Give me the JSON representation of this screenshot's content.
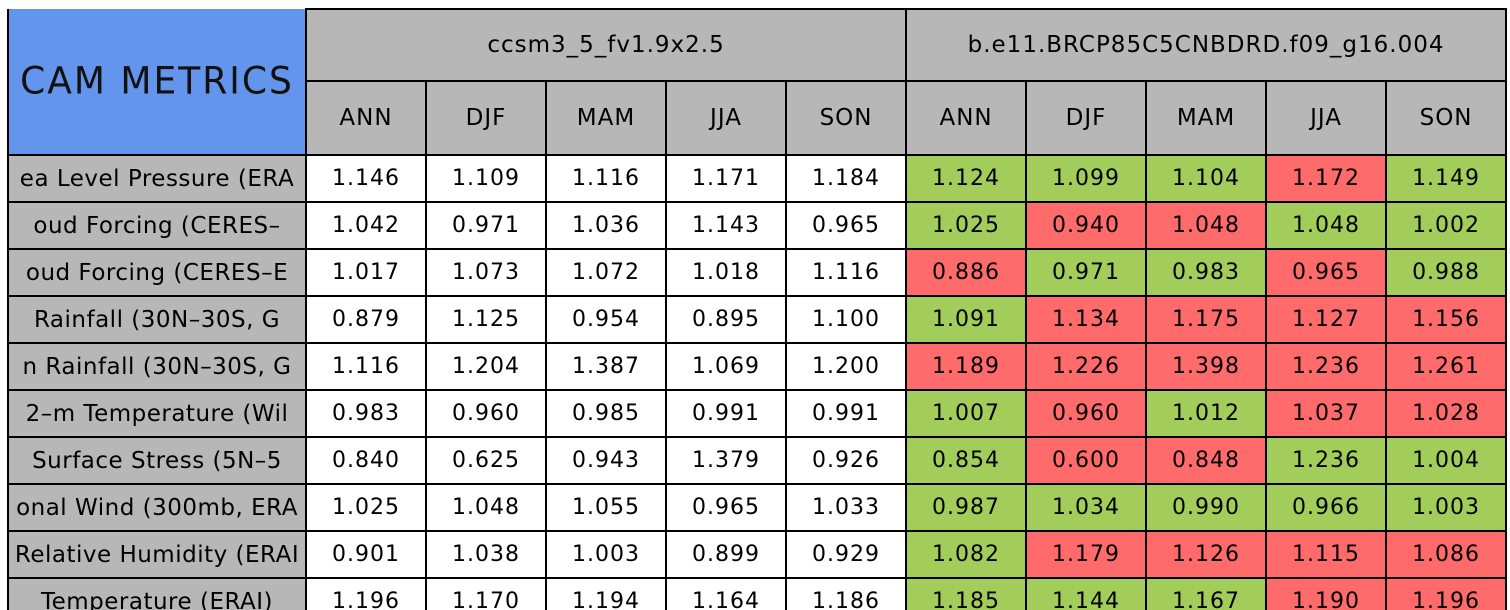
{
  "chart_data": {
    "type": "table",
    "title": "CAM METRICS",
    "legend_semantics": {
      "green_cells": "second model closer to 1.0 (better)",
      "red_cells": "second model farther from 1.0 (worse)"
    },
    "column_groups": [
      {
        "name": "ccsm3_5_fv1.9x2.5",
        "seasons": [
          "ANN",
          "DJF",
          "MAM",
          "JJA",
          "SON"
        ]
      },
      {
        "name": "b.e11.BRCP85C5CNBDRD.f09_g16.004",
        "seasons": [
          "ANN",
          "DJF",
          "MAM",
          "JJA",
          "SON"
        ]
      }
    ],
    "rows": [
      {
        "label": "ea Level Pressure (ERA",
        "model1": [
          "1.146",
          "1.109",
          "1.116",
          "1.171",
          "1.184"
        ],
        "model2": [
          "1.124",
          "1.099",
          "1.104",
          "1.172",
          "1.149"
        ],
        "model2_status": [
          "better",
          "better",
          "better",
          "worse",
          "better"
        ]
      },
      {
        "label": "oud Forcing (CERES–",
        "model1": [
          "1.042",
          "0.971",
          "1.036",
          "1.143",
          "0.965"
        ],
        "model2": [
          "1.025",
          "0.940",
          "1.048",
          "1.048",
          "1.002"
        ],
        "model2_status": [
          "better",
          "worse",
          "worse",
          "better",
          "better"
        ]
      },
      {
        "label": "oud Forcing (CERES–E",
        "model1": [
          "1.017",
          "1.073",
          "1.072",
          "1.018",
          "1.116"
        ],
        "model2": [
          "0.886",
          "0.971",
          "0.983",
          "0.965",
          "0.988"
        ],
        "model2_status": [
          "worse",
          "better",
          "better",
          "worse",
          "better"
        ]
      },
      {
        "label": "Rainfall (30N–30S, G",
        "model1": [
          "0.879",
          "1.125",
          "0.954",
          "0.895",
          "1.100"
        ],
        "model2": [
          "1.091",
          "1.134",
          "1.175",
          "1.127",
          "1.156"
        ],
        "model2_status": [
          "better",
          "worse",
          "worse",
          "worse",
          "worse"
        ]
      },
      {
        "label": "n Rainfall (30N–30S, G",
        "model1": [
          "1.116",
          "1.204",
          "1.387",
          "1.069",
          "1.200"
        ],
        "model2": [
          "1.189",
          "1.226",
          "1.398",
          "1.236",
          "1.261"
        ],
        "model2_status": [
          "worse",
          "worse",
          "worse",
          "worse",
          "worse"
        ]
      },
      {
        "label": "2–m Temperature (Wil",
        "model1": [
          "0.983",
          "0.960",
          "0.985",
          "0.991",
          "0.991"
        ],
        "model2": [
          "1.007",
          "0.960",
          "1.012",
          "1.037",
          "1.028"
        ],
        "model2_status": [
          "better",
          "worse",
          "better",
          "worse",
          "worse"
        ]
      },
      {
        "label": "Surface Stress (5N–5",
        "model1": [
          "0.840",
          "0.625",
          "0.943",
          "1.379",
          "0.926"
        ],
        "model2": [
          "0.854",
          "0.600",
          "0.848",
          "1.236",
          "1.004"
        ],
        "model2_status": [
          "better",
          "worse",
          "worse",
          "better",
          "better"
        ]
      },
      {
        "label": "onal Wind (300mb, ERA",
        "model1": [
          "1.025",
          "1.048",
          "1.055",
          "0.965",
          "1.033"
        ],
        "model2": [
          "0.987",
          "1.034",
          "0.990",
          "0.966",
          "1.003"
        ],
        "model2_status": [
          "better",
          "better",
          "better",
          "better",
          "better"
        ]
      },
      {
        "label": "Relative Humidity (ERAI",
        "model1": [
          "0.901",
          "1.038",
          "1.003",
          "0.899",
          "0.929"
        ],
        "model2": [
          "1.082",
          "1.179",
          "1.126",
          "1.115",
          "1.086"
        ],
        "model2_status": [
          "better",
          "worse",
          "worse",
          "worse",
          "worse"
        ]
      },
      {
        "label": "Temperature (ERAI)",
        "model1": [
          "1.196",
          "1.170",
          "1.194",
          "1.164",
          "1.186"
        ],
        "model2": [
          "1.185",
          "1.144",
          "1.167",
          "1.190",
          "1.196"
        ],
        "model2_status": [
          "better",
          "better",
          "better",
          "worse",
          "worse"
        ]
      }
    ]
  },
  "colors": {
    "header_blue": "#6495ed",
    "header_gray": "#b7b7b7",
    "better_green": "#a2cd5a",
    "worse_red": "#ff6a6a",
    "value_white": "#ffffff",
    "border_black": "#000000"
  }
}
